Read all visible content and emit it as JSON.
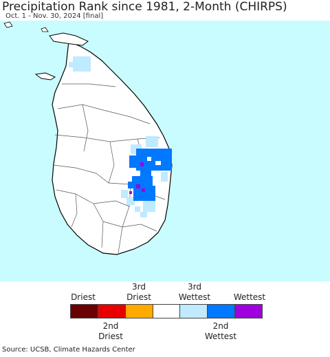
{
  "title": "Precipitation Rank since 1981, 2-Month (CHIRPS)",
  "subtitle": "Oct. 1 - Nov. 30, 2024 [final]",
  "legend": {
    "top_labels": [
      "Driest",
      "3rd\nDriest",
      "3rd\nWettest",
      "Wettest"
    ],
    "bottom_labels": [
      "2nd\nDriest",
      "2nd\nWettest"
    ],
    "colors": [
      "#6b0000",
      "#e80000",
      "#ffaa00",
      "#ffffff",
      "#bfeaff",
      "#0078ff",
      "#a000e0"
    ]
  },
  "source": "Source: UCSB, Climate Hazards Center",
  "colors": {
    "ocean": "#c8fcff",
    "land": "#ffffff",
    "border": "#000000"
  }
}
